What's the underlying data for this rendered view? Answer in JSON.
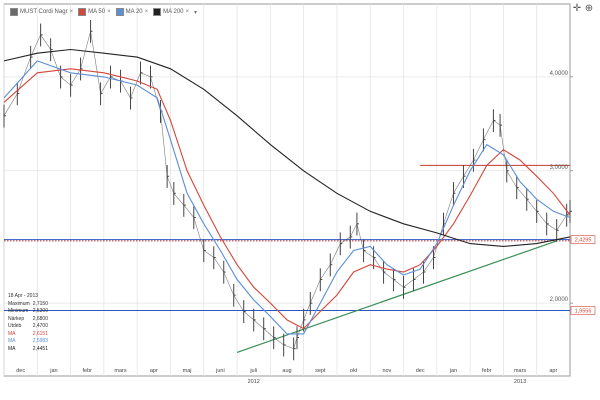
{
  "legend": {
    "items": [
      {
        "name": "MUST Cordi Nagr",
        "color": "#6a6a6a"
      },
      {
        "name": "MA 50",
        "color": "#d2473b"
      },
      {
        "name": "MA 20",
        "color": "#5b8fd6"
      },
      {
        "name": "MA 200",
        "color": "#222222"
      }
    ]
  },
  "infobox": {
    "date": "18 Apr - 2013",
    "rows": [
      {
        "label": "Maximum",
        "value": "2,7150",
        "color": "#333333"
      },
      {
        "label": "Minimum",
        "value": "2,5300",
        "color": "#333333"
      },
      {
        "label": "Närkep",
        "value": "2,6800",
        "color": "#333333"
      },
      {
        "label": "Utdeb",
        "value": "2,4700",
        "color": "#333333"
      },
      {
        "label": "MA",
        "value": "2,6151",
        "color": "#d2473b"
      },
      {
        "label": "MA",
        "value": "2,5983",
        "color": "#5b8fd6"
      },
      {
        "label": "MA",
        "value": "2,4451",
        "color": "#222222"
      }
    ]
  },
  "chart_data": {
    "type": "line",
    "title": "",
    "y_scale": "log",
    "ylim": [
      1.6,
      5.0
    ],
    "y_ticks": [
      {
        "value": 4.0,
        "label": "4,0000"
      },
      {
        "value": 3.0,
        "label": "3,0000"
      },
      {
        "value": 2.0,
        "label": "2,0000"
      }
    ],
    "x_ticks": [
      "dec",
      "jan",
      "febr",
      "mars",
      "apr",
      "maj",
      "juni",
      "juli",
      "aug",
      "sept",
      "okt",
      "nov",
      "dec",
      "jan",
      "febr",
      "mars",
      "apr"
    ],
    "year_labels": [
      {
        "label": "2012",
        "at_month_index": 7
      },
      {
        "label": "2013",
        "at_month_index": 15
      }
    ],
    "price_labels": [
      {
        "value": 2.4295,
        "label": "2,4295",
        "color": "#d2473b"
      },
      {
        "value": 1.9556,
        "label": "1,9556",
        "color": "#d2473b"
      }
    ],
    "horizontal_lines": [
      {
        "value": 2.4295,
        "color": "#2f55c4",
        "style": "solid"
      },
      {
        "value": 2.42,
        "color": "#c0392b",
        "style": "dotted"
      },
      {
        "value": 1.9556,
        "color": "#2f55c4",
        "style": "solid"
      },
      {
        "value": 3.05,
        "color": "#c0392b",
        "style": "solid",
        "from_month": 12.5
      }
    ],
    "trendline": {
      "from": [
        7.0,
        1.72
      ],
      "to": [
        16.6,
        2.42
      ],
      "color": "#3a8f56"
    },
    "series": [
      {
        "name": "MUST Cordi Nagr",
        "color": "#444444",
        "type": "hlc",
        "points": [
          [
            0.0,
            3.55
          ],
          [
            0.4,
            3.8
          ],
          [
            0.8,
            4.25
          ],
          [
            1.1,
            4.55
          ],
          [
            1.4,
            4.35
          ],
          [
            1.7,
            4.0
          ],
          [
            2.0,
            3.9
          ],
          [
            2.3,
            4.1
          ],
          [
            2.6,
            4.6
          ],
          [
            2.9,
            3.8
          ],
          [
            3.2,
            4.0
          ],
          [
            3.5,
            3.95
          ],
          [
            3.8,
            3.75
          ],
          [
            4.1,
            4.05
          ],
          [
            4.4,
            4.0
          ],
          [
            4.7,
            3.6
          ],
          [
            4.9,
            2.95
          ],
          [
            5.1,
            2.8
          ],
          [
            5.4,
            2.7
          ],
          [
            5.7,
            2.6
          ],
          [
            6.0,
            2.35
          ],
          [
            6.3,
            2.3
          ],
          [
            6.6,
            2.2
          ],
          [
            6.9,
            2.05
          ],
          [
            7.2,
            1.95
          ],
          [
            7.5,
            1.9
          ],
          [
            7.8,
            1.85
          ],
          [
            8.1,
            1.8
          ],
          [
            8.4,
            1.76
          ],
          [
            8.7,
            1.74
          ],
          [
            8.8,
            1.8
          ],
          [
            9.0,
            1.9
          ],
          [
            9.2,
            2.0
          ],
          [
            9.5,
            2.15
          ],
          [
            9.8,
            2.25
          ],
          [
            10.1,
            2.4
          ],
          [
            10.4,
            2.45
          ],
          [
            10.6,
            2.55
          ],
          [
            10.8,
            2.35
          ],
          [
            11.1,
            2.3
          ],
          [
            11.4,
            2.2
          ],
          [
            11.7,
            2.15
          ],
          [
            12.0,
            2.1
          ],
          [
            12.3,
            2.15
          ],
          [
            12.6,
            2.2
          ],
          [
            12.9,
            2.3
          ],
          [
            13.2,
            2.55
          ],
          [
            13.5,
            2.8
          ],
          [
            13.8,
            2.95
          ],
          [
            14.1,
            3.1
          ],
          [
            14.4,
            3.3
          ],
          [
            14.7,
            3.5
          ],
          [
            14.9,
            3.45
          ],
          [
            15.1,
            3.0
          ],
          [
            15.4,
            2.85
          ],
          [
            15.7,
            2.75
          ],
          [
            16.0,
            2.65
          ],
          [
            16.3,
            2.55
          ],
          [
            16.6,
            2.5
          ],
          [
            16.9,
            2.62
          ],
          [
            17.0,
            2.65
          ]
        ]
      },
      {
        "name": "MA 50",
        "color": "#d2473b",
        "points": [
          [
            0.0,
            3.7
          ],
          [
            1.0,
            4.05
          ],
          [
            2.0,
            4.1
          ],
          [
            3.0,
            4.05
          ],
          [
            4.0,
            3.95
          ],
          [
            4.6,
            3.85
          ],
          [
            5.0,
            3.5
          ],
          [
            5.5,
            3.0
          ],
          [
            6.0,
            2.7
          ],
          [
            6.5,
            2.45
          ],
          [
            7.0,
            2.25
          ],
          [
            7.5,
            2.1
          ],
          [
            8.0,
            2.0
          ],
          [
            8.5,
            1.9
          ],
          [
            9.0,
            1.85
          ],
          [
            9.5,
            1.95
          ],
          [
            10.0,
            2.05
          ],
          [
            10.5,
            2.2
          ],
          [
            11.0,
            2.25
          ],
          [
            11.5,
            2.22
          ],
          [
            12.0,
            2.2
          ],
          [
            12.5,
            2.25
          ],
          [
            13.0,
            2.38
          ],
          [
            13.5,
            2.55
          ],
          [
            14.0,
            2.78
          ],
          [
            14.5,
            3.05
          ],
          [
            15.0,
            3.2
          ],
          [
            15.5,
            3.1
          ],
          [
            16.0,
            2.95
          ],
          [
            16.5,
            2.8
          ],
          [
            17.0,
            2.62
          ]
        ]
      },
      {
        "name": "MA 20",
        "color": "#5b8fd6",
        "points": [
          [
            0.0,
            3.75
          ],
          [
            1.0,
            4.2
          ],
          [
            2.0,
            4.05
          ],
          [
            3.0,
            4.0
          ],
          [
            4.0,
            3.9
          ],
          [
            4.6,
            3.75
          ],
          [
            5.0,
            3.3
          ],
          [
            5.5,
            2.8
          ],
          [
            6.0,
            2.55
          ],
          [
            6.5,
            2.35
          ],
          [
            7.0,
            2.15
          ],
          [
            7.5,
            2.02
          ],
          [
            8.0,
            1.92
          ],
          [
            8.5,
            1.82
          ],
          [
            9.0,
            1.82
          ],
          [
            9.5,
            2.0
          ],
          [
            10.0,
            2.2
          ],
          [
            10.5,
            2.35
          ],
          [
            11.0,
            2.38
          ],
          [
            11.5,
            2.25
          ],
          [
            12.0,
            2.18
          ],
          [
            12.5,
            2.22
          ],
          [
            13.0,
            2.4
          ],
          [
            13.5,
            2.7
          ],
          [
            14.0,
            3.0
          ],
          [
            14.5,
            3.25
          ],
          [
            15.0,
            3.15
          ],
          [
            15.5,
            2.9
          ],
          [
            16.0,
            2.75
          ],
          [
            16.5,
            2.65
          ],
          [
            17.0,
            2.6
          ]
        ]
      },
      {
        "name": "MA 200",
        "color": "#222222",
        "points": [
          [
            0.0,
            4.2
          ],
          [
            1.0,
            4.3
          ],
          [
            2.0,
            4.35
          ],
          [
            3.0,
            4.3
          ],
          [
            4.0,
            4.25
          ],
          [
            5.0,
            4.1
          ],
          [
            6.0,
            3.85
          ],
          [
            7.0,
            3.55
          ],
          [
            8.0,
            3.25
          ],
          [
            9.0,
            3.0
          ],
          [
            10.0,
            2.8
          ],
          [
            11.0,
            2.65
          ],
          [
            12.0,
            2.55
          ],
          [
            13.0,
            2.48
          ],
          [
            14.0,
            2.4
          ],
          [
            15.0,
            2.38
          ],
          [
            16.0,
            2.4
          ],
          [
            17.0,
            2.45
          ]
        ]
      }
    ]
  }
}
